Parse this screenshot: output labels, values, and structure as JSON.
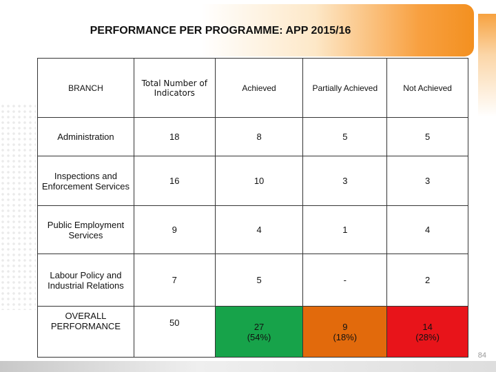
{
  "title": "PERFORMANCE PER PROGRAMME: APP 2015/16",
  "headers": {
    "branch": "BRANCH",
    "total": "Total Number of Indicators",
    "achieved": "Achieved",
    "partially": "Partially Achieved",
    "not_achieved": "Not Achieved"
  },
  "rows": [
    {
      "branch": "Administration",
      "total": "18",
      "achieved": "8",
      "partially": "5",
      "not_achieved": "5"
    },
    {
      "branch": "Inspections and Enforcement Services",
      "total": "16",
      "achieved": "10",
      "partially": "3",
      "not_achieved": "3"
    },
    {
      "branch": "Public Employment Services",
      "total": "9",
      "achieved": "4",
      "partially": "1",
      "not_achieved": "4"
    },
    {
      "branch": "Labour Policy and Industrial Relations",
      "total": "7",
      "achieved": "5",
      "partially": "-",
      "not_achieved": "2"
    }
  ],
  "overall": {
    "branch": "OVERALL PERFORMANCE",
    "total": "50",
    "achieved": "27\n(54%)",
    "partially": "9\n(18%)",
    "not_achieved": "14\n(28%)"
  },
  "page_number": "84",
  "colors": {
    "achieved": "#2a8f2a",
    "partially": "#d4700a",
    "not_achieved": "#e01010",
    "achieved_bg": "#17a34a",
    "partially_bg": "#e26a0c",
    "not_achieved_bg": "#e8141a",
    "banner_accent": "#f39020"
  }
}
